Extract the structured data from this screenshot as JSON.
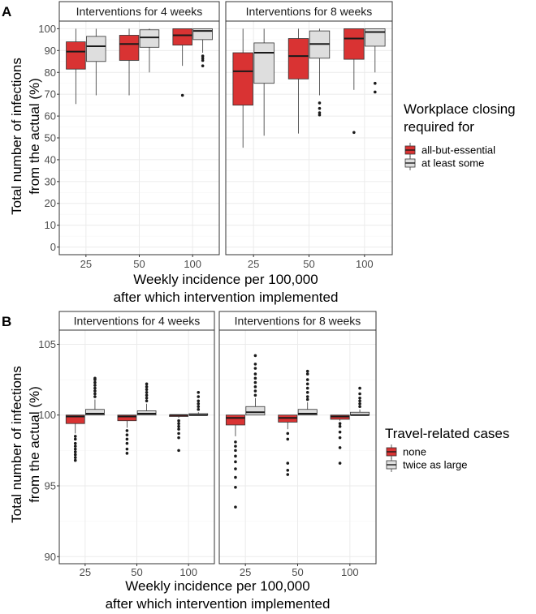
{
  "figure_labels": [
    "A",
    "B"
  ],
  "colors": {
    "red": "#d93333",
    "grey": "#dedede",
    "box_stroke": "#333333",
    "grid_major": "#ebebeb",
    "grid_minor": "#f5f5f5",
    "strip_fill": "#ffffff",
    "panel_border": "#333333"
  },
  "chart_data": [
    {
      "type": "box",
      "panel_label": "A",
      "title": "",
      "facets": [
        "Interventions for 4 weeks",
        "Interventions for 8 weeks"
      ],
      "categories": [
        "25",
        "50",
        "100"
      ],
      "xlabel": "Weekly incidence per 100,000\nafter which intervention implemented",
      "ylabel": "Total number of infections\nfrom the actual (%)",
      "ylim": [
        -3.5,
        103.5
      ],
      "yticks": [
        0,
        10,
        20,
        30,
        40,
        50,
        60,
        70,
        80,
        90,
        100
      ],
      "grid": true,
      "legend": {
        "title": "Workplace closing\nrequired for",
        "position": "right",
        "entries": [
          {
            "label": "all-but-essential",
            "color": "#d93333"
          },
          {
            "label": "at least some",
            "color": "#dedede"
          }
        ]
      },
      "series": [
        {
          "name": "all-but-essential",
          "color": "#d93333",
          "boxes": [
            {
              "facet": 0,
              "category": "25",
              "q1": 81.5,
              "median": 89.5,
              "q3": 94.0,
              "whisker_low": 65.5,
              "whisker_high": 100.0,
              "outliers": []
            },
            {
              "facet": 0,
              "category": "50",
              "q1": 85.5,
              "median": 93.0,
              "q3": 97.0,
              "whisker_low": 69.5,
              "whisker_high": 100.0,
              "outliers": []
            },
            {
              "facet": 0,
              "category": "100",
              "q1": 92.5,
              "median": 97.0,
              "q3": 100.0,
              "whisker_low": 83.0,
              "whisker_high": 100.0,
              "outliers": [
                69.5
              ]
            },
            {
              "facet": 1,
              "category": "25",
              "q1": 65.0,
              "median": 80.5,
              "q3": 89.0,
              "whisker_low": 45.5,
              "whisker_high": 100.0,
              "outliers": []
            },
            {
              "facet": 1,
              "category": "50",
              "q1": 77.0,
              "median": 87.5,
              "q3": 95.5,
              "whisker_low": 52.0,
              "whisker_high": 100.0,
              "outliers": []
            },
            {
              "facet": 1,
              "category": "100",
              "q1": 86.0,
              "median": 95.5,
              "q3": 100.0,
              "whisker_low": 72.0,
              "whisker_high": 100.0,
              "outliers": [
                52.5
              ]
            }
          ]
        },
        {
          "name": "at least some",
          "color": "#dedede",
          "boxes": [
            {
              "facet": 0,
              "category": "25",
              "q1": 85.0,
              "median": 92.0,
              "q3": 96.5,
              "whisker_low": 69.5,
              "whisker_high": 100.0,
              "outliers": []
            },
            {
              "facet": 0,
              "category": "50",
              "q1": 91.5,
              "median": 96.0,
              "q3": 99.5,
              "whisker_low": 80.0,
              "whisker_high": 100.0,
              "outliers": []
            },
            {
              "facet": 0,
              "category": "100",
              "q1": 95.0,
              "median": 99.0,
              "q3": 100.0,
              "whisker_low": 89.0,
              "whisker_high": 100.0,
              "outliers": [
                87.5,
                86.5,
                85.5,
                83.0
              ]
            },
            {
              "facet": 1,
              "category": "25",
              "q1": 75.0,
              "median": 89.0,
              "q3": 93.5,
              "whisker_low": 51.0,
              "whisker_high": 100.0,
              "outliers": []
            },
            {
              "facet": 1,
              "category": "50",
              "q1": 86.5,
              "median": 93.0,
              "q3": 99.0,
              "whisker_low": 69.5,
              "whisker_high": 100.0,
              "outliers": [
                66.0,
                63.5,
                61.5,
                60.5
              ]
            },
            {
              "facet": 1,
              "category": "100",
              "q1": 92.0,
              "median": 98.5,
              "q3": 100.0,
              "whisker_low": 80.0,
              "whisker_high": 100.0,
              "outliers": [
                75.0,
                71.0
              ]
            }
          ]
        }
      ]
    },
    {
      "type": "box",
      "panel_label": "B",
      "title": "",
      "facets": [
        "Interventions for 4 weeks",
        "Interventions for 8 weeks"
      ],
      "categories": [
        "25",
        "50",
        "100"
      ],
      "xlabel": "Weekly incidence per 100,000\nafter which intervention implemented",
      "ylabel": "Total number of infections\nfrom the actual (%)",
      "ylim": [
        89.5,
        106.0
      ],
      "yticks": [
        90,
        95,
        100,
        105
      ],
      "grid": true,
      "legend": {
        "title": "Travel-related cases",
        "position": "right",
        "entries": [
          {
            "label": "none",
            "color": "#d93333"
          },
          {
            "label": "twice as large",
            "color": "#dedede"
          }
        ]
      },
      "series": [
        {
          "name": "none",
          "color": "#d93333",
          "boxes": [
            {
              "facet": 0,
              "category": "25",
              "q1": 99.4,
              "median": 99.9,
              "q3": 100.0,
              "whisker_low": 98.7,
              "whisker_high": 100.0,
              "outliers": [
                98.5,
                98.3,
                98.0,
                97.8,
                97.6,
                97.4,
                97.2,
                97.0,
                96.8
              ]
            },
            {
              "facet": 0,
              "category": "50",
              "q1": 99.6,
              "median": 99.9,
              "q3": 100.0,
              "whisker_low": 99.1,
              "whisker_high": 100.0,
              "outliers": [
                98.9,
                98.6,
                98.3,
                98.0,
                97.6,
                97.3
              ]
            },
            {
              "facet": 0,
              "category": "100",
              "q1": 99.9,
              "median": 100.0,
              "q3": 100.0,
              "whisker_low": 99.8,
              "whisker_high": 100.0,
              "outliers": [
                99.6,
                99.4,
                99.2,
                99.0,
                98.7,
                98.4,
                97.5
              ]
            },
            {
              "facet": 1,
              "category": "25",
              "q1": 99.3,
              "median": 99.8,
              "q3": 100.0,
              "whisker_low": 98.5,
              "whisker_high": 100.0,
              "outliers": [
                98.1,
                97.8,
                97.5,
                97.1,
                96.7,
                96.2,
                95.6,
                94.9,
                93.5
              ]
            },
            {
              "facet": 1,
              "category": "50",
              "q1": 99.5,
              "median": 99.8,
              "q3": 100.0,
              "whisker_low": 99.0,
              "whisker_high": 100.0,
              "outliers": [
                98.7,
                98.3,
                96.6,
                96.1,
                95.8
              ]
            },
            {
              "facet": 1,
              "category": "100",
              "q1": 99.7,
              "median": 99.9,
              "q3": 100.0,
              "whisker_low": 99.6,
              "whisker_high": 100.0,
              "outliers": [
                99.4,
                99.2,
                98.8,
                98.4,
                97.7,
                96.6
              ]
            }
          ]
        },
        {
          "name": "twice as large",
          "color": "#dedede",
          "boxes": [
            {
              "facet": 0,
              "category": "25",
              "q1": 100.0,
              "median": 100.1,
              "q3": 100.4,
              "whisker_low": 100.0,
              "whisker_high": 101.1,
              "outliers": [
                101.3,
                101.5,
                101.7,
                101.9,
                102.1,
                102.3,
                102.5,
                102.6
              ]
            },
            {
              "facet": 0,
              "category": "50",
              "q1": 100.0,
              "median": 100.1,
              "q3": 100.3,
              "whisker_low": 100.0,
              "whisker_high": 100.8,
              "outliers": [
                101.0,
                101.2,
                101.4,
                101.6,
                101.8,
                102.0,
                102.2
              ]
            },
            {
              "facet": 0,
              "category": "100",
              "q1": 100.0,
              "median": 100.0,
              "q3": 100.1,
              "whisker_low": 100.0,
              "whisker_high": 100.2,
              "outliers": [
                100.4,
                100.6,
                100.8,
                101.0,
                101.3,
                101.6
              ]
            },
            {
              "facet": 1,
              "category": "25",
              "q1": 100.0,
              "median": 100.2,
              "q3": 100.6,
              "whisker_low": 100.0,
              "whisker_high": 101.2,
              "outliers": [
                101.4,
                101.7,
                102.0,
                102.3,
                102.6,
                102.9,
                103.3,
                103.6,
                104.2
              ]
            },
            {
              "facet": 1,
              "category": "50",
              "q1": 100.0,
              "median": 100.1,
              "q3": 100.4,
              "whisker_low": 100.0,
              "whisker_high": 100.9,
              "outliers": [
                101.1,
                101.3,
                101.6,
                101.9,
                102.2,
                102.5,
                102.9,
                103.1
              ]
            },
            {
              "facet": 1,
              "category": "100",
              "q1": 100.0,
              "median": 100.0,
              "q3": 100.2,
              "whisker_low": 100.0,
              "whisker_high": 100.4,
              "outliers": [
                100.6,
                100.8,
                101.0,
                101.2,
                101.5,
                101.9
              ]
            }
          ]
        }
      ]
    }
  ]
}
